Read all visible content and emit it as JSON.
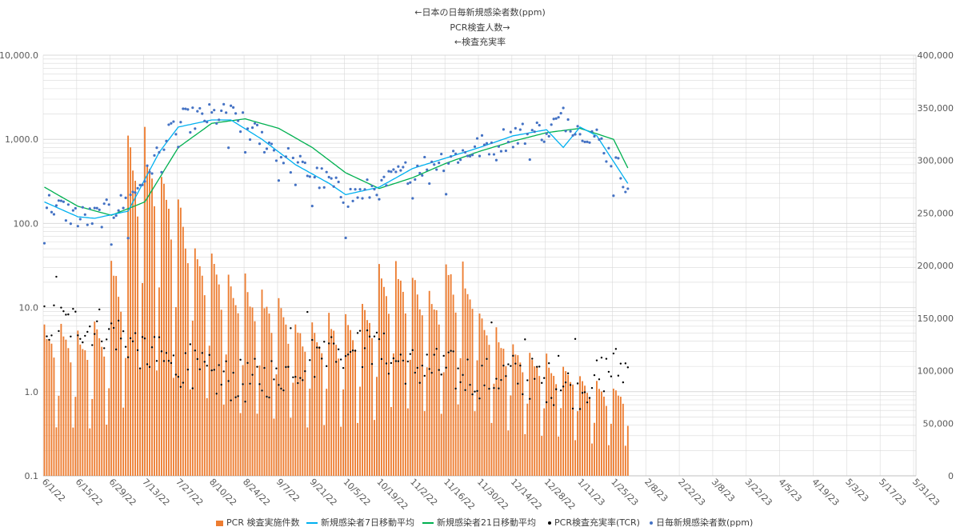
{
  "titles": {
    "line1": "←日本の日毎新規感染者数(ppm)",
    "line2": "PCR検査人数→",
    "line3": "←検査充実率"
  },
  "colors": {
    "bars": "#ED7D31",
    "ma7": "#00B0F0",
    "ma21": "#00B050",
    "tcr": "#000000",
    "daily": "#4472C4",
    "grid": "#D9D9D9"
  },
  "legend": {
    "bars": "PCR 検査実施件数",
    "ma7": "新規感染者7日移動平均",
    "ma21": "新規感染者21日移動平均",
    "tcr": "PCR検査充実率(TCR)",
    "daily": "日毎新規感染者数(ppm)"
  },
  "chart_data": {
    "type": "combo",
    "left_axis": {
      "scale": "log",
      "range": [
        0.1,
        10000
      ],
      "tick_labels": [
        "10,000.0",
        "1,000.0",
        "100.0",
        "10.0",
        "1.0",
        "0.1"
      ]
    },
    "right_axis": {
      "scale": "linear",
      "range": [
        0,
        400000
      ],
      "tick_labels": [
        "400,000",
        "350,000",
        "300,000",
        "250,000",
        "200,000",
        "150,000",
        "100,000",
        "50,000",
        "0"
      ]
    },
    "x_axis": {
      "start": "6/1/22",
      "total_days": 365,
      "tick_labels": [
        "6/1/22",
        "6/15/22",
        "6/29/22",
        "7/13/22",
        "7/27/22",
        "8/10/22",
        "8/24/22",
        "9/7/22",
        "9/21/22",
        "10/5/22",
        "10/19/22",
        "11/2/22",
        "11/16/22",
        "11/30/22",
        "12/14/22",
        "12/28/22",
        "1/11/23",
        "1/25/23",
        "2/8/23",
        "2/22/23",
        "3/8/23",
        "3/22/23",
        "4/5/23",
        "4/19/23",
        "5/3/23",
        "5/17/23",
        "5/31/23"
      ],
      "tick_interval_days": 14
    },
    "data_days": 245,
    "series": [
      {
        "name": "PCR 検査実施件数",
        "type": "bar",
        "axis": "right",
        "weekly_peak_by_week": [
          145000,
          143000,
          140000,
          150000,
          210000,
          330000,
          330000,
          300000,
          270000,
          230000,
          215000,
          195000,
          190000,
          178000,
          170000,
          150000,
          150000,
          152000,
          155000,
          172000,
          208000,
          205000,
          198000,
          185000,
          210000,
          200000,
          160000,
          142000,
          128000,
          120000,
          115000,
          110000,
          95000,
          90000,
          88000
        ]
      },
      {
        "name": "新規感染者7日移動平均",
        "type": "line",
        "axis": "left",
        "keypoints": [
          [
            0,
            180
          ],
          [
            14,
            120
          ],
          [
            21,
            115
          ],
          [
            35,
            140
          ],
          [
            48,
            700
          ],
          [
            56,
            1400
          ],
          [
            70,
            1700
          ],
          [
            78,
            1700
          ],
          [
            91,
            1000
          ],
          [
            105,
            500
          ],
          [
            119,
            300
          ],
          [
            126,
            220
          ],
          [
            140,
            270
          ],
          [
            154,
            450
          ],
          [
            168,
            600
          ],
          [
            182,
            800
          ],
          [
            196,
            1100
          ],
          [
            210,
            1300
          ],
          [
            217,
            800
          ],
          [
            224,
            1400
          ],
          [
            231,
            1100
          ],
          [
            245,
            270
          ]
        ]
      },
      {
        "name": "新規感染者21日移動平均",
        "type": "line",
        "axis": "left",
        "keypoints": [
          [
            0,
            270
          ],
          [
            14,
            160
          ],
          [
            28,
            125
          ],
          [
            42,
            180
          ],
          [
            56,
            800
          ],
          [
            70,
            1550
          ],
          [
            84,
            1750
          ],
          [
            98,
            1350
          ],
          [
            112,
            800
          ],
          [
            126,
            400
          ],
          [
            140,
            260
          ],
          [
            154,
            350
          ],
          [
            168,
            520
          ],
          [
            182,
            720
          ],
          [
            196,
            950
          ],
          [
            210,
            1200
          ],
          [
            224,
            1350
          ],
          [
            238,
            1000
          ],
          [
            245,
            400
          ]
        ]
      },
      {
        "name": "PCR検査充実率(TCR)",
        "type": "scatter",
        "axis": "left",
        "keypoints": [
          [
            0,
            6.5
          ],
          [
            14,
            6.5
          ],
          [
            28,
            5.5
          ],
          [
            42,
            3.0
          ],
          [
            56,
            2.0
          ],
          [
            70,
            1.5
          ],
          [
            84,
            1.3
          ],
          [
            98,
            1.6
          ],
          [
            112,
            2.5
          ],
          [
            126,
            3.5
          ],
          [
            140,
            3.0
          ],
          [
            154,
            2.0
          ],
          [
            168,
            1.8
          ],
          [
            182,
            1.5
          ],
          [
            196,
            1.6
          ],
          [
            210,
            1.3
          ],
          [
            224,
            1.1
          ],
          [
            238,
            2.0
          ],
          [
            245,
            1.8
          ]
        ]
      },
      {
        "name": "日毎新規感染者数(ppm)",
        "type": "scatter",
        "axis": "left",
        "keypoints": [
          [
            0,
            180
          ],
          [
            14,
            120
          ],
          [
            21,
            115
          ],
          [
            35,
            180
          ],
          [
            48,
            700
          ],
          [
            56,
            1600
          ],
          [
            70,
            1900
          ],
          [
            78,
            1900
          ],
          [
            91,
            1000
          ],
          [
            105,
            500
          ],
          [
            119,
            300
          ],
          [
            126,
            200
          ],
          [
            140,
            270
          ],
          [
            154,
            450
          ],
          [
            168,
            600
          ],
          [
            182,
            800
          ],
          [
            196,
            1100
          ],
          [
            210,
            1300
          ],
          [
            217,
            1800
          ],
          [
            231,
            1100
          ],
          [
            245,
            270
          ]
        ]
      }
    ]
  }
}
